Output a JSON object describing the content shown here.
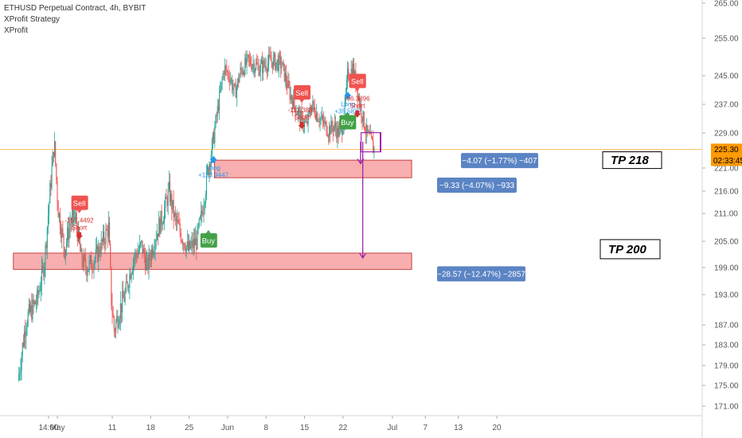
{
  "header": {
    "title": "ETHUSD Perpetual Contract, 4h, BYBIT",
    "indicators": [
      "XProfit Strategy",
      "XProfit"
    ]
  },
  "colors": {
    "up": "#26a69a",
    "down": "#ef5350",
    "zone_fill": "#f7a0a0",
    "zone_stroke": "#b71c1c",
    "measure_fill": "#5b84c4",
    "purple": "#9c27b0",
    "price_tag": "#ff9800",
    "buy": "#43a047",
    "sell": "#ef5350",
    "long": "#2196f3"
  },
  "chart_data": {
    "type": "candlestick",
    "timeframe": "4h",
    "symbol": "ETHUSD",
    "exchange": "BYBIT",
    "y_ticks": [
      265.0,
      255.0,
      245.0,
      237.0,
      229.0,
      221.0,
      216.0,
      211.0,
      205.0,
      199.0,
      193.0,
      187.0,
      183.0,
      179.0,
      175.0,
      171.0
    ],
    "x_ticks": [
      {
        "label": "14:00",
        "day": -1.6
      },
      {
        "label": "May",
        "day": 0
      },
      {
        "label": "11",
        "day": 10
      },
      {
        "label": "18",
        "day": 17
      },
      {
        "label": "25",
        "day": 24
      },
      {
        "label": "Jun",
        "day": 31
      },
      {
        "label": "8",
        "day": 38
      },
      {
        "label": "15",
        "day": 45
      },
      {
        "label": "22",
        "day": 52
      },
      {
        "label": "Jul",
        "day": 61
      },
      {
        "label": "7",
        "day": 67
      },
      {
        "label": "13",
        "day": 73
      },
      {
        "label": "20",
        "day": 80
      }
    ],
    "last_price": "225.30",
    "countdown": "02:33:45",
    "path_points": [
      [
        -7,
        176
      ],
      [
        -5.5,
        188
      ],
      [
        -3.5,
        192
      ],
      [
        -2.2,
        200
      ],
      [
        -1.3,
        214
      ],
      [
        -0.4,
        227
      ],
      [
        0.3,
        212
      ],
      [
        1.5,
        203
      ],
      [
        2.5,
        209
      ],
      [
        3.5,
        210
      ],
      [
        4.5,
        201
      ],
      [
        5.5,
        199
      ],
      [
        7.0,
        201
      ],
      [
        8.5,
        205
      ],
      [
        9.5,
        208
      ],
      [
        10.0,
        192
      ],
      [
        10.5,
        186
      ],
      [
        11.5,
        190
      ],
      [
        12.5,
        193
      ],
      [
        14.0,
        201
      ],
      [
        15.5,
        204
      ],
      [
        16.5,
        199
      ],
      [
        18.0,
        206
      ],
      [
        19.5,
        211
      ],
      [
        20.5,
        216
      ],
      [
        21.5,
        210
      ],
      [
        22.5,
        207
      ],
      [
        24.0,
        203
      ],
      [
        25.5,
        205
      ],
      [
        26.5,
        211
      ],
      [
        27.5,
        220
      ],
      [
        28.5,
        227
      ],
      [
        29.5,
        237
      ],
      [
        30.5,
        247
      ],
      [
        31.5,
        245
      ],
      [
        32.5,
        240
      ],
      [
        33.5,
        246
      ],
      [
        35.0,
        249
      ],
      [
        37.0,
        247
      ],
      [
        39.0,
        249
      ],
      [
        41.0,
        248
      ],
      [
        42.5,
        240
      ],
      [
        43.5,
        236
      ],
      [
        44.5,
        233
      ],
      [
        45.5,
        231
      ],
      [
        46.5,
        237
      ],
      [
        47.5,
        234
      ],
      [
        48.5,
        232
      ],
      [
        49.5,
        230
      ],
      [
        50.5,
        231
      ],
      [
        51.5,
        229
      ],
      [
        52.3,
        232
      ],
      [
        53.0,
        245
      ],
      [
        54.0,
        247
      ],
      [
        55.0,
        239
      ],
      [
        55.8,
        233
      ],
      [
        56.5,
        229
      ],
      [
        57.2,
        227
      ],
      [
        57.8,
        225.3
      ]
    ],
    "zones": [
      {
        "day_start": 28.6,
        "day_end": 64.5,
        "y_top": 222.8,
        "y_bottom": 218.9
      },
      {
        "day_start": -8,
        "day_end": 64.5,
        "y_top": 202.3,
        "y_bottom": 198.6
      }
    ],
    "price_line": 225.3,
    "targets": [
      {
        "label": "TP 218",
        "level": 222.8
      },
      {
        "label": "TP 200",
        "level": 203.2
      }
    ],
    "measurements": [
      {
        "label": "−4.07 (−1.77%) −407",
        "y_center": 222.7
      },
      {
        "label": "−9.33 (−4.07%) −933",
        "y_center": 217.3
      },
      {
        "label": "−28.57 (−12.47%) −2857",
        "y_center": 197.6
      }
    ],
    "purple_box": {
      "day_start": 55.3,
      "day_end": 58.9,
      "y_top": 229.1,
      "y_bottom": 224.7
    },
    "purple_arrows": [
      {
        "day": 55.2,
        "from": 227.0,
        "to": 222.0
      },
      {
        "day": 55.6,
        "from": 227.0,
        "to": 201.2
      }
    ],
    "signals": [
      {
        "kind": "sell",
        "label": "Sell",
        "value": "-157.4492",
        "note": "Short",
        "day": 4.0,
        "y": 213.2
      },
      {
        "kind": "buy",
        "label": "Buy",
        "value": "",
        "note": "",
        "day": 27.5,
        "y": 205.2
      },
      {
        "kind": "long",
        "label": "",
        "value": "+123.9447",
        "note": "Long",
        "day": 28.4,
        "y": 221.8
      },
      {
        "kind": "sell",
        "label": "Sell",
        "value": "-112.3888",
        "note": "Short",
        "day": 44.5,
        "y": 240.1
      },
      {
        "kind": "buy",
        "label": "Buy",
        "value": "",
        "note": "",
        "day": 52.8,
        "y": 232.0
      },
      {
        "kind": "long",
        "label": "",
        "value": "+35.5832",
        "note": "Long",
        "day": 52.9,
        "y": 238.0
      },
      {
        "kind": "sell",
        "label": "Sell",
        "value": "-96.3896",
        "note": "Short",
        "day": 54.6,
        "y": 243.3
      }
    ]
  }
}
